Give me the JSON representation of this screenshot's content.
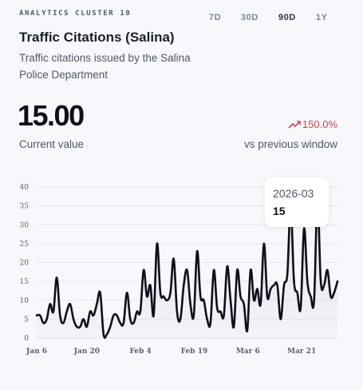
{
  "header": {
    "cluster_label": "ANALYTICS CLUSTER 10",
    "title": "Traffic Citations (Salina)",
    "subtitle": "Traffic citations issued by the Salina Police Department"
  },
  "ranges": [
    {
      "label": "7D",
      "active": false
    },
    {
      "label": "30D",
      "active": false
    },
    {
      "label": "90D",
      "active": true
    },
    {
      "label": "1Y",
      "active": false
    }
  ],
  "metric": {
    "value": "15.00",
    "value_label": "Current value",
    "change": "150.0%",
    "change_label": "vs previous window",
    "change_color": "#d0434f"
  },
  "tooltip": {
    "date": "2026-03",
    "value": "15"
  },
  "chart_data": {
    "type": "line",
    "title": "",
    "xlabel": "",
    "ylabel": "",
    "ylim": [
      0,
      40
    ],
    "yticks": [
      0,
      5,
      10,
      15,
      20,
      25,
      30,
      35,
      40
    ],
    "grid": true,
    "x_start": "2026-01-06",
    "x_end": "2026-03-31",
    "xticks": [
      {
        "date": "2026-01-06",
        "label": "Jan 6"
      },
      {
        "date": "2026-01-20",
        "label": "Jan 20"
      },
      {
        "date": "2026-02-04",
        "label": "Feb 4"
      },
      {
        "date": "2026-02-19",
        "label": "Feb 19"
      },
      {
        "date": "2026-03-06",
        "label": "Mar 6"
      },
      {
        "date": "2026-03-21",
        "label": "Mar 21"
      }
    ],
    "series": [
      {
        "name": "",
        "color": "#0d1018",
        "values": [
          6,
          6,
          4,
          5,
          9,
          7,
          16,
          6,
          4,
          7,
          9,
          5,
          3,
          3,
          5,
          3,
          7,
          6,
          9,
          12,
          1,
          1,
          3,
          6,
          6,
          4,
          4,
          12,
          5,
          4,
          7,
          7,
          18,
          11,
          14,
          6,
          25,
          12,
          11,
          10,
          12,
          21,
          7,
          5,
          14,
          18,
          9,
          6,
          23,
          11,
          10,
          5,
          4,
          18,
          8,
          7,
          6,
          19,
          10,
          3,
          18,
          11,
          9,
          2,
          18,
          10,
          13,
          9,
          25,
          11,
          13,
          14,
          14,
          5,
          14,
          17,
          35,
          15,
          12,
          8,
          29,
          15,
          11,
          10,
          37,
          15,
          14,
          18,
          11,
          12,
          15
        ]
      }
    ]
  }
}
